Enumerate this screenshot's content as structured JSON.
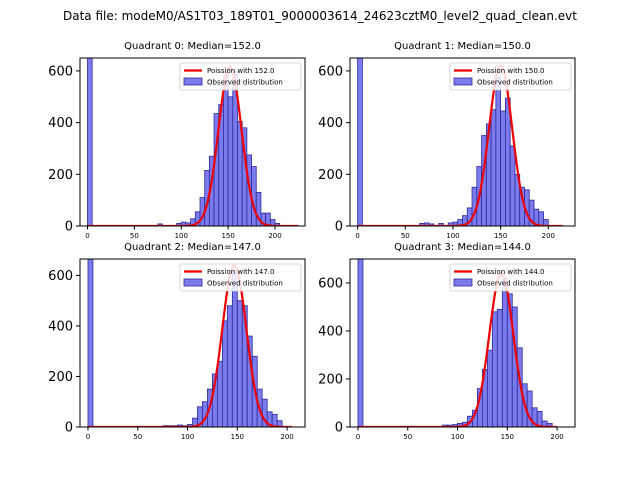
{
  "figure": {
    "suptitle": "Data file: modeM0/AS1T03_189T01_9000003614_24623cztM0_level2_quad_clean.evt",
    "bar_color": "#7b7bee",
    "bar_edge": "#2b2b9c",
    "curve_color": "#ee0000"
  },
  "chart_data": [
    {
      "type": "bar",
      "title": "Quadrant 0: Median=152.0",
      "median": 152.0,
      "xlim": [
        -8,
        232
      ],
      "ylim": [
        0,
        650
      ],
      "xticks": [
        0,
        50,
        100,
        150,
        200
      ],
      "yticks": [
        0,
        200,
        400,
        600
      ],
      "legend": [
        "Poission with 152.0",
        "Observed distribution"
      ],
      "bin_width": 5,
      "bins": [
        {
          "x": 0,
          "count": 650
        },
        {
          "x": 75,
          "count": 8
        },
        {
          "x": 95,
          "count": 10
        },
        {
          "x": 100,
          "count": 15
        },
        {
          "x": 105,
          "count": 12
        },
        {
          "x": 110,
          "count": 28
        },
        {
          "x": 115,
          "count": 55
        },
        {
          "x": 120,
          "count": 110
        },
        {
          "x": 125,
          "count": 215
        },
        {
          "x": 130,
          "count": 270
        },
        {
          "x": 135,
          "count": 435
        },
        {
          "x": 140,
          "count": 470
        },
        {
          "x": 145,
          "count": 580
        },
        {
          "x": 150,
          "count": 500
        },
        {
          "x": 155,
          "count": 600
        },
        {
          "x": 160,
          "count": 405
        },
        {
          "x": 165,
          "count": 380
        },
        {
          "x": 170,
          "count": 275
        },
        {
          "x": 175,
          "count": 230
        },
        {
          "x": 180,
          "count": 130
        },
        {
          "x": 185,
          "count": 50
        },
        {
          "x": 190,
          "count": 50
        },
        {
          "x": 195,
          "count": 25
        },
        {
          "x": 200,
          "count": 10
        }
      ],
      "poisson": {
        "mean": 152.0,
        "peak": 615,
        "sigma": 12.3,
        "x_range": [
          0,
          225
        ]
      }
    },
    {
      "type": "bar",
      "title": "Quadrant 1: Median=150.0",
      "median": 150.0,
      "xlim": [
        -8,
        228
      ],
      "ylim": [
        0,
        650
      ],
      "xticks": [
        0,
        50,
        100,
        150,
        200
      ],
      "yticks": [
        0,
        200,
        400,
        600
      ],
      "legend": [
        "Poission with 150.0",
        "Observed distribution"
      ],
      "bin_width": 5,
      "bins": [
        {
          "x": 0,
          "count": 650
        },
        {
          "x": 65,
          "count": 10
        },
        {
          "x": 70,
          "count": 12
        },
        {
          "x": 75,
          "count": 8
        },
        {
          "x": 85,
          "count": 10
        },
        {
          "x": 95,
          "count": 12
        },
        {
          "x": 100,
          "count": 15
        },
        {
          "x": 105,
          "count": 25
        },
        {
          "x": 110,
          "count": 40
        },
        {
          "x": 115,
          "count": 70
        },
        {
          "x": 120,
          "count": 150
        },
        {
          "x": 125,
          "count": 230
        },
        {
          "x": 130,
          "count": 350
        },
        {
          "x": 135,
          "count": 395
        },
        {
          "x": 140,
          "count": 450
        },
        {
          "x": 145,
          "count": 575
        },
        {
          "x": 150,
          "count": 445
        },
        {
          "x": 155,
          "count": 495
        },
        {
          "x": 160,
          "count": 310
        },
        {
          "x": 165,
          "count": 200
        },
        {
          "x": 170,
          "count": 150
        },
        {
          "x": 175,
          "count": 140
        },
        {
          "x": 180,
          "count": 100
        },
        {
          "x": 185,
          "count": 65
        },
        {
          "x": 190,
          "count": 55
        },
        {
          "x": 195,
          "count": 25
        }
      ],
      "poisson": {
        "mean": 150.0,
        "peak": 620,
        "sigma": 12.2,
        "x_range": [
          0,
          215
        ]
      }
    },
    {
      "type": "bar",
      "title": "Quadrant 2: Median=147.0",
      "median": 147.0,
      "xlim": [
        -8,
        218
      ],
      "ylim": [
        0,
        665
      ],
      "xticks": [
        0,
        50,
        100,
        150,
        200
      ],
      "yticks": [
        0,
        200,
        400,
        600
      ],
      "legend": [
        "Poission with 147.0",
        "Observed distribution"
      ],
      "bin_width": 5,
      "bins": [
        {
          "x": 0,
          "count": 665
        },
        {
          "x": 75,
          "count": 5
        },
        {
          "x": 80,
          "count": 5
        },
        {
          "x": 85,
          "count": 5
        },
        {
          "x": 90,
          "count": 8
        },
        {
          "x": 95,
          "count": 5
        },
        {
          "x": 100,
          "count": 10
        },
        {
          "x": 105,
          "count": 35
        },
        {
          "x": 110,
          "count": 80
        },
        {
          "x": 115,
          "count": 100
        },
        {
          "x": 120,
          "count": 150
        },
        {
          "x": 125,
          "count": 210
        },
        {
          "x": 130,
          "count": 260
        },
        {
          "x": 135,
          "count": 420
        },
        {
          "x": 140,
          "count": 480
        },
        {
          "x": 145,
          "count": 620
        },
        {
          "x": 150,
          "count": 500
        },
        {
          "x": 155,
          "count": 480
        },
        {
          "x": 160,
          "count": 360
        },
        {
          "x": 165,
          "count": 280
        },
        {
          "x": 170,
          "count": 150
        },
        {
          "x": 175,
          "count": 110
        },
        {
          "x": 180,
          "count": 60
        },
        {
          "x": 185,
          "count": 50
        },
        {
          "x": 190,
          "count": 25
        }
      ],
      "poisson": {
        "mean": 147.0,
        "peak": 640,
        "sigma": 12.1,
        "x_range": [
          0,
          205
        ]
      }
    },
    {
      "type": "bar",
      "title": "Quadrant 3: Median=144.0",
      "median": 144.0,
      "xlim": [
        -8,
        218
      ],
      "ylim": [
        0,
        700
      ],
      "xticks": [
        0,
        50,
        100,
        150,
        200
      ],
      "yticks": [
        0,
        200,
        400,
        600
      ],
      "legend": [
        "Poission with 144.0",
        "Observed distribution"
      ],
      "bin_width": 5,
      "bins": [
        {
          "x": 0,
          "count": 700
        },
        {
          "x": 85,
          "count": 8
        },
        {
          "x": 90,
          "count": 8
        },
        {
          "x": 95,
          "count": 10
        },
        {
          "x": 100,
          "count": 15
        },
        {
          "x": 105,
          "count": 20
        },
        {
          "x": 110,
          "count": 45
        },
        {
          "x": 115,
          "count": 70
        },
        {
          "x": 120,
          "count": 160
        },
        {
          "x": 125,
          "count": 240
        },
        {
          "x": 130,
          "count": 320
        },
        {
          "x": 135,
          "count": 480
        },
        {
          "x": 140,
          "count": 490
        },
        {
          "x": 145,
          "count": 620
        },
        {
          "x": 150,
          "count": 555
        },
        {
          "x": 155,
          "count": 500
        },
        {
          "x": 160,
          "count": 330
        },
        {
          "x": 165,
          "count": 180
        },
        {
          "x": 170,
          "count": 150
        },
        {
          "x": 175,
          "count": 80
        },
        {
          "x": 180,
          "count": 65
        },
        {
          "x": 185,
          "count": 25
        },
        {
          "x": 190,
          "count": 15
        }
      ],
      "poisson": {
        "mean": 144.0,
        "peak": 640,
        "sigma": 12.0,
        "x_range": [
          0,
          200
        ]
      }
    }
  ]
}
